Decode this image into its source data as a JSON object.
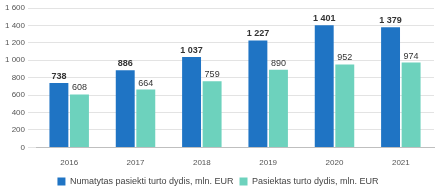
{
  "chart_data": {
    "type": "bar",
    "categories": [
      "2016",
      "2017",
      "2018",
      "2019",
      "2020",
      "2021"
    ],
    "series": [
      {
        "name": "Numatytas pasiekti turto dydis, mln. EUR",
        "color": "#1f74c4",
        "values": [
          738,
          886,
          1037,
          1227,
          1401,
          1379
        ],
        "value_labels": [
          "738",
          "886",
          "1 037",
          "1 227",
          "1 401",
          "1 379"
        ]
      },
      {
        "name": "Pasiektas turto dydis, mln. EUR",
        "color": "#6dd2bd",
        "values": [
          608,
          664,
          759,
          890,
          952,
          974
        ]
      }
    ],
    "ylim": [
      0,
      1600
    ],
    "yticks": [
      0,
      200,
      400,
      600,
      800,
      {
        "value": 1000,
        "label": "1 000"
      },
      {
        "value": 1200,
        "label": "1 200"
      },
      {
        "value": 1400,
        "label": "1 400"
      },
      {
        "value": 1600,
        "label": "1 600"
      }
    ],
    "grid": true,
    "legend": "bottom",
    "data_labels": true
  }
}
